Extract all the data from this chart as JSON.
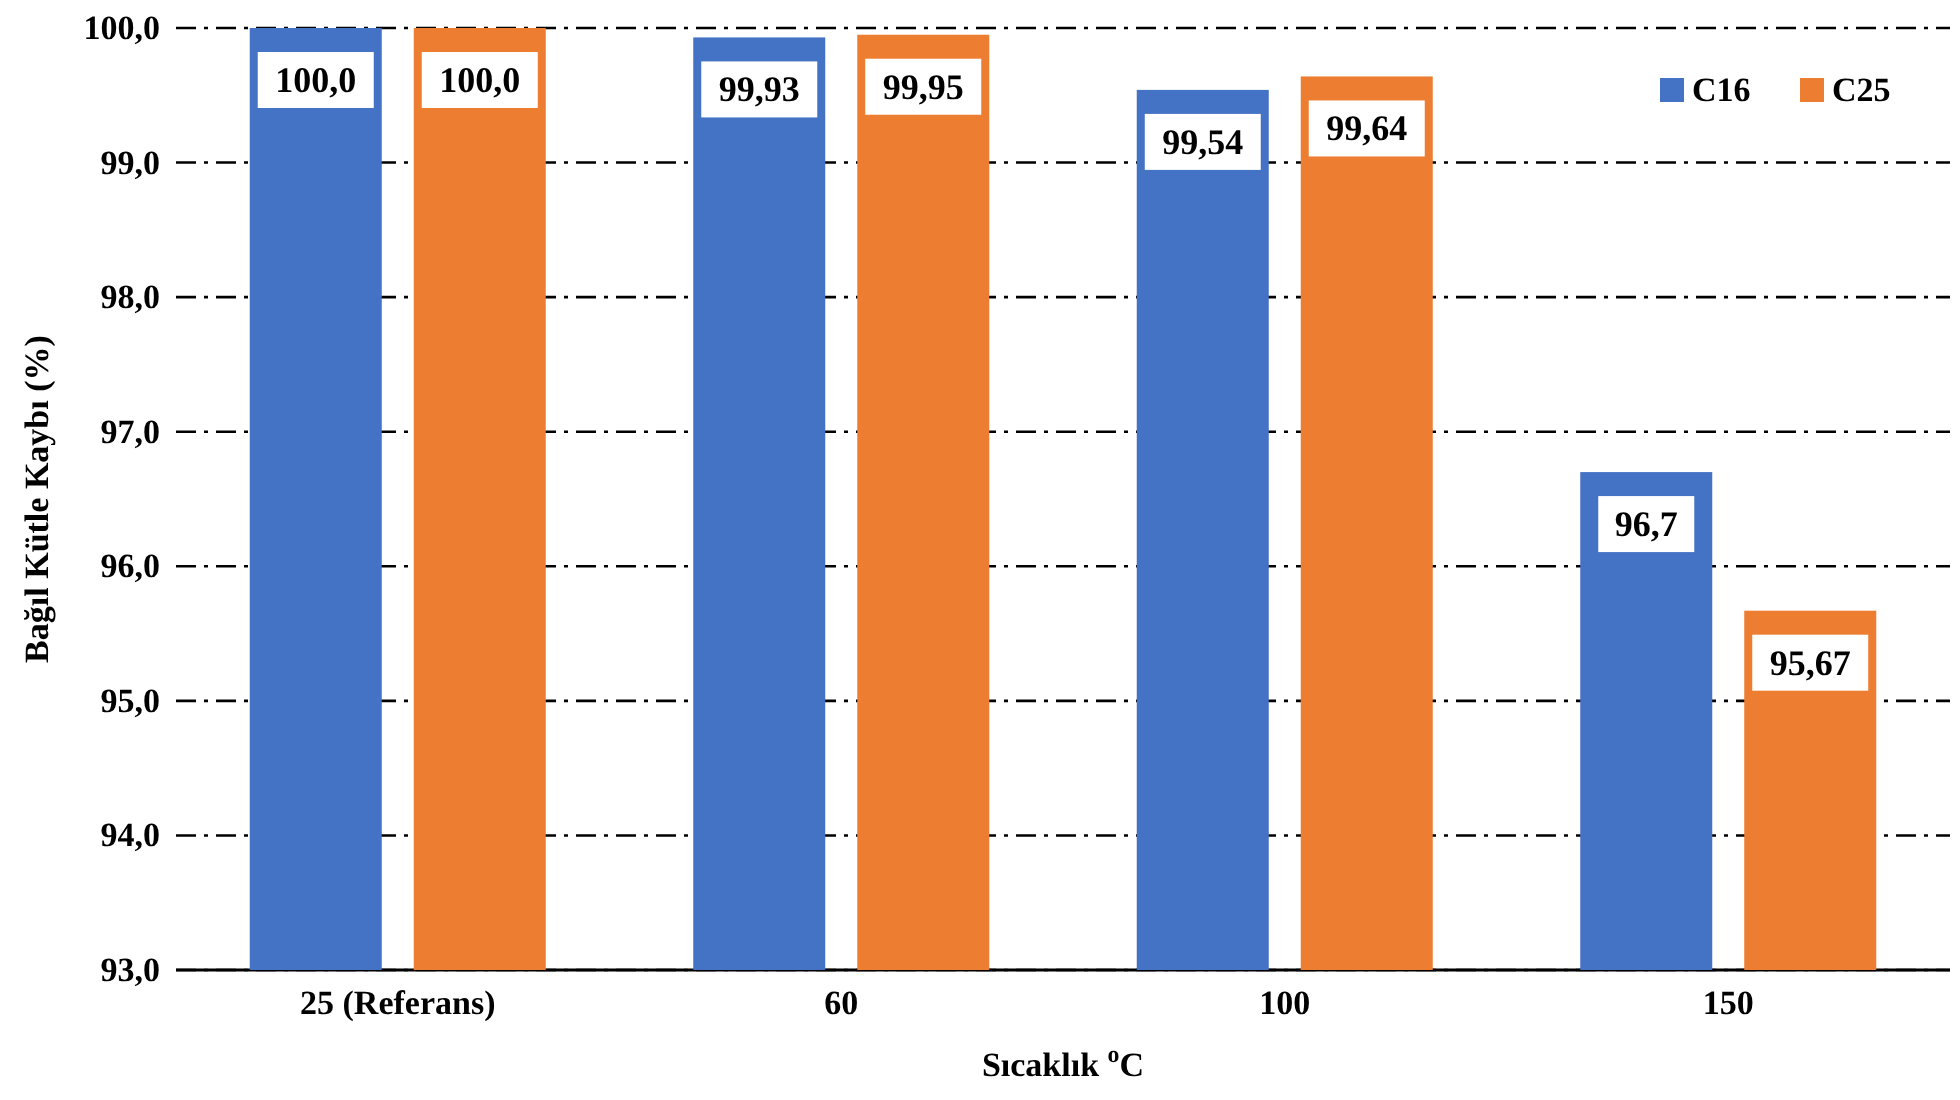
{
  "chart_data": {
    "type": "bar",
    "xlabel": "Sıcaklık $^{o}$C",
    "ylabel": "Bağıl Kütle Kaybı (%)",
    "categories": [
      "25 (Referans)",
      "60",
      "100",
      "150"
    ],
    "series": [
      {
        "name": "C16",
        "color": "#4472c4",
        "values": [
          100.0,
          99.93,
          99.54,
          96.7
        ],
        "value_labels": [
          "100,0",
          "99,93",
          "99,54",
          "96,7"
        ]
      },
      {
        "name": "C25",
        "color": "#ed7d31",
        "values": [
          100.0,
          99.95,
          99.64,
          95.67
        ],
        "value_labels": [
          "100,0",
          "99,95",
          "99,64",
          "95,67"
        ]
      }
    ],
    "ylim": [
      93,
      100
    ],
    "yticks": [
      {
        "value": 93,
        "label": "93,0"
      },
      {
        "value": 94,
        "label": "94,0"
      },
      {
        "value": 95,
        "label": "95,0"
      },
      {
        "value": 96,
        "label": "96,0"
      },
      {
        "value": 97,
        "label": "97,0"
      },
      {
        "value": 98,
        "label": "98,0"
      },
      {
        "value": 99,
        "label": "99,0"
      },
      {
        "value": 100,
        "label": "100,0"
      }
    ],
    "grid": "y",
    "legend": "top right"
  }
}
